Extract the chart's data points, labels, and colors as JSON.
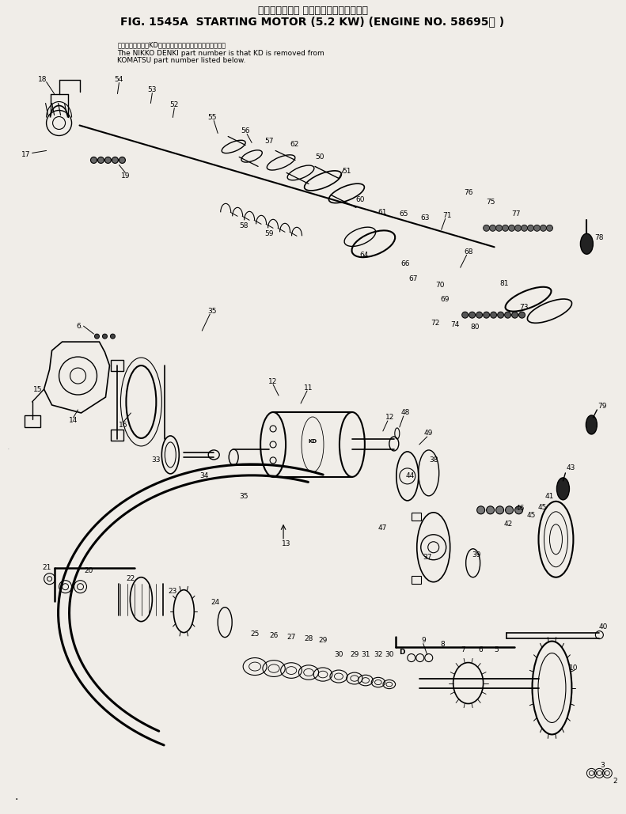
{
  "title_jp": "スターティング モータ　　　　適用号機",
  "title_en": "FIG. 1545A  STARTING MOTOR (5.2 KW) (ENGINE NO. 58695－ )",
  "note_jp": "品番のメーカ記号KDを除いたものが日興電機の品番です。",
  "note_en1": "The NIKKO DENKI part number is that KD is removed from",
  "note_en2": "KOMATSU part number listed below.",
  "bg_color": "#f0ede8",
  "line_color": "#000000",
  "text_color": "#000000",
  "fig_width": 7.91,
  "fig_height": 10.29
}
